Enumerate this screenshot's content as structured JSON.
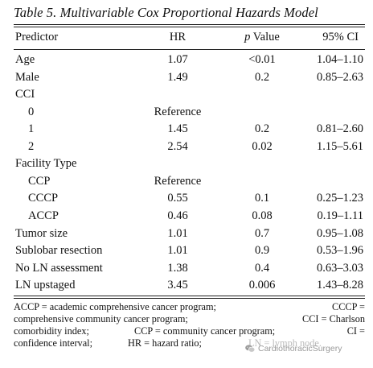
{
  "table": {
    "title": "Table 5.  Multivariable Cox Proportional Hazards Model",
    "headers": {
      "predictor": "Predictor",
      "hr": "HR",
      "p_italic": "p",
      "p_rest": " Value",
      "ci": "95% CI"
    },
    "rows": [
      {
        "label": "Age",
        "hr": "1.07",
        "p": "<0.01",
        "ci": "1.04–1.10"
      },
      {
        "label": "Male",
        "hr": "1.49",
        "p": "0.2",
        "ci": "0.85–2.63"
      },
      {
        "label": "CCI",
        "hr": "",
        "p": "",
        "ci": ""
      },
      {
        "label": "0",
        "hr": "Reference",
        "p": "",
        "ci": ""
      },
      {
        "label": "1",
        "hr": "1.45",
        "p": "0.2",
        "ci": "0.81–2.60"
      },
      {
        "label": "2",
        "hr": "2.54",
        "p": "0.02",
        "ci": "1.15–5.61"
      },
      {
        "label": "Facility Type",
        "hr": "",
        "p": "",
        "ci": ""
      },
      {
        "label": "CCP",
        "hr": "Reference",
        "p": "",
        "ci": ""
      },
      {
        "label": "CCCP",
        "hr": "0.55",
        "p": "0.1",
        "ci": "0.25–1.23"
      },
      {
        "label": "ACCP",
        "hr": "0.46",
        "p": "0.08",
        "ci": "0.19–1.11"
      },
      {
        "label": "Tumor size",
        "hr": "1.01",
        "p": "0.7",
        "ci": "0.95–1.08"
      },
      {
        "label": "Sublobar resection",
        "hr": "1.01",
        "p": "0.9",
        "ci": "0.53–1.96"
      },
      {
        "label": "No LN assessment",
        "hr": "1.38",
        "p": "0.4",
        "ci": "0.63–3.03"
      },
      {
        "label": "LN upstaged",
        "hr": "3.45",
        "p": "0.006",
        "ci": "1.43–8.28"
      }
    ],
    "footnote": {
      "line1a": "ACCP = academic comprehensive cancer program;",
      "line1b": "CCCP =",
      "line2a": "comprehensive community cancer program;",
      "line2b": "CCI = Charlson",
      "line3a": "comorbidity index;",
      "line3b": "CCP = community cancer program;",
      "line3c": "CI =",
      "line4a": "confidence interval;",
      "line4b": "HR = hazard ratio;",
      "line4c": "LN = lymph node."
    }
  },
  "watermark": {
    "text": "CardiothoracicSurgery",
    "icon": "wechat-icon"
  }
}
